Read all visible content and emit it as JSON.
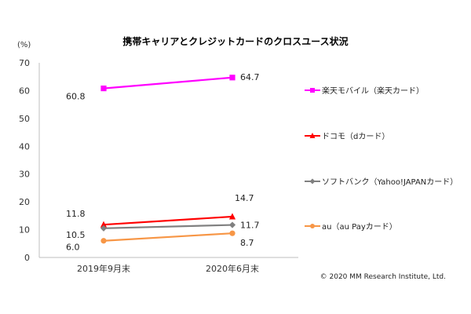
{
  "chart_data": {
    "type": "line",
    "title": "携帯キャリアとクレジットカードのクロスユース状況",
    "y_unit": "(%)",
    "categories": [
      "2019年9月末",
      "2020年6月末"
    ],
    "ylim": [
      0,
      70
    ],
    "yticks": [
      0,
      10,
      20,
      30,
      40,
      50,
      60,
      70
    ],
    "grid": false,
    "legend_position": "right",
    "series": [
      {
        "name": "楽天モバイル（楽天カード）",
        "values": [
          60.8,
          64.7
        ],
        "labels": [
          "60.8",
          "64.7"
        ],
        "color": "#ff00ff",
        "marker": "square"
      },
      {
        "name": "ドコモ（dカード）",
        "values": [
          11.8,
          14.7
        ],
        "labels": [
          "11.8",
          "14.7"
        ],
        "color": "#ff0000",
        "marker": "triangle"
      },
      {
        "name": "ソフトバンク（Yahoo!JAPANカード）",
        "values": [
          10.5,
          11.7
        ],
        "labels": [
          "10.5",
          "11.7"
        ],
        "color": "#808080",
        "marker": "diamond"
      },
      {
        "name": "au（au Payカード）",
        "values": [
          6.0,
          8.7
        ],
        "labels": [
          "6.0",
          "8.7"
        ],
        "color": "#f79646",
        "marker": "circle"
      }
    ]
  },
  "copyright": "© 2020 MM Research Institute, Ltd."
}
